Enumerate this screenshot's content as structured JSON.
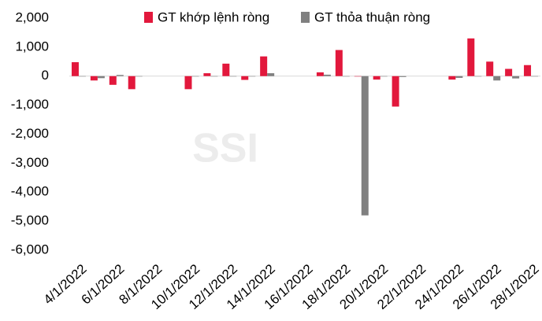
{
  "chart_data": {
    "type": "bar",
    "watermark": "SSI",
    "categories": [
      "4/1/2022",
      null,
      "6/1/2022",
      null,
      "8/1/2022",
      null,
      "10/1/2022",
      null,
      "12/1/2022",
      null,
      "14/1/2022",
      null,
      "16/1/2022",
      null,
      "18/1/2022",
      null,
      "20/1/2022",
      null,
      "22/1/2022",
      null,
      "24/1/2022",
      null,
      "26/1/2022",
      null,
      "28/1/2022"
    ],
    "series": [
      {
        "name": "GT khớp lệnh ròng",
        "color": "#e2183c",
        "values": [
          480,
          -150,
          -300,
          -450,
          null,
          null,
          -450,
          100,
          430,
          -130,
          680,
          null,
          null,
          130,
          900,
          0,
          -120,
          -1050,
          null,
          null,
          -120,
          1300,
          500,
          250,
          380
        ]
      },
      {
        "name": "GT thỏa thuận ròng",
        "color": "#808080",
        "values": [
          0,
          -70,
          40,
          0,
          null,
          null,
          0,
          0,
          0,
          0,
          100,
          null,
          null,
          50,
          0,
          -4800,
          0,
          -30,
          null,
          null,
          -60,
          0,
          -150,
          -80,
          0
        ]
      }
    ],
    "ylim": [
      -6000,
      2000
    ],
    "yticks": [
      {
        "value": 2000,
        "label": "2,000"
      },
      {
        "value": 1000,
        "label": "1,000"
      },
      0,
      {
        "value": -1000,
        "label": "-1,000"
      },
      {
        "value": -2000,
        "label": "-2,000"
      },
      {
        "value": -3000,
        "label": "-3,000"
      },
      {
        "value": -4000,
        "label": "-4,000"
      },
      {
        "value": -5000,
        "label": "-5,000"
      },
      {
        "value": -6000,
        "label": "-6,000"
      }
    ],
    "legend": "top"
  }
}
